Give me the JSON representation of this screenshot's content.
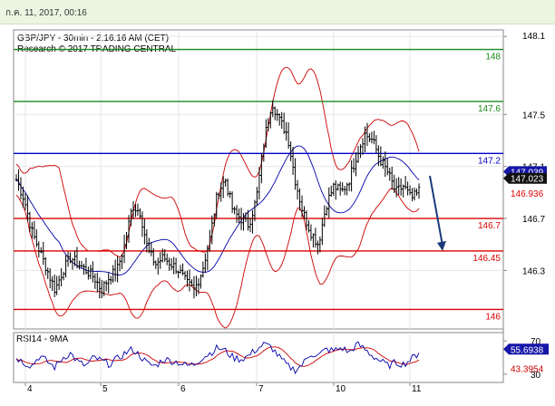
{
  "header": {
    "date_text": "ก.ค. 11, 2017, 00:16"
  },
  "chart_data": {
    "type": "candlestick",
    "title": "GBP/JPY - 30min - 2:16:16 AM (CET)",
    "subtitle": "Research © 2017 TRADING CENTRAL",
    "ylim": [
      145.85,
      148.15
    ],
    "y_ticks": [
      146.3,
      146.7,
      147.1,
      147.5,
      148.1
    ],
    "x_ticks": [
      "4",
      "5",
      "6",
      "7",
      "10",
      "11"
    ],
    "colors": {
      "resistance_green": "#1a8a1a",
      "pivot_blue": "#0000cc",
      "support_red": "#dd0000",
      "bollinger": "#cc0000",
      "moving_average": "#0000aa",
      "candles": "#000000",
      "forecast_arrow": "#1a3a7a"
    },
    "levels": [
      {
        "value": 148.0,
        "label": "148",
        "color": "green"
      },
      {
        "value": 147.6,
        "label": "147.6",
        "color": "green"
      },
      {
        "value": 147.2,
        "label": "147.2",
        "color": "blue"
      },
      {
        "value": 146.7,
        "label": "146.7",
        "color": "red"
      },
      {
        "value": 146.45,
        "label": "146.45",
        "color": "red"
      },
      {
        "value": 146.0,
        "label": "146",
        "color": "red"
      }
    ],
    "price_tags": [
      {
        "value": 147.039,
        "label": "147.039",
        "style": "blue"
      },
      {
        "value": 147.023,
        "label": "147.023",
        "style": "black"
      },
      {
        "value": 146.936,
        "label": "146.936",
        "style": "red-text"
      }
    ],
    "price_path": [
      147.0,
      146.85,
      146.6,
      146.45,
      146.3,
      146.15,
      146.3,
      146.4,
      146.35,
      146.3,
      146.25,
      146.15,
      146.25,
      146.3,
      146.5,
      146.8,
      146.75,
      146.45,
      146.35,
      146.4,
      146.35,
      146.3,
      146.2,
      146.15,
      146.3,
      146.55,
      146.9,
      147.0,
      146.75,
      146.7,
      146.65,
      146.85,
      147.3,
      147.6,
      147.45,
      147.35,
      147.0,
      146.75,
      146.6,
      146.5,
      146.8,
      146.95,
      146.9,
      147.0,
      147.2,
      147.35,
      147.3,
      147.15,
      147.05,
      146.9,
      146.95,
      146.85,
      146.9
    ],
    "forecast": {
      "from": 147.0,
      "to": 146.45
    },
    "rsi": {
      "title": "RSI14 - 9MA",
      "ylim": [
        20,
        80
      ],
      "ticks": [
        30,
        70
      ],
      "rsi_label": "55.6938",
      "ma_label": "43.3954",
      "rsi_color": "#0000aa",
      "ma_color": "#cc0000",
      "path": [
        50,
        44,
        40,
        52,
        45,
        38,
        50,
        55,
        44,
        40,
        50,
        46,
        42,
        48,
        55,
        60,
        52,
        42,
        40,
        48,
        46,
        44,
        40,
        42,
        50,
        55,
        62,
        58,
        50,
        48,
        52,
        60,
        66,
        62,
        50,
        40,
        35,
        42,
        55,
        52,
        60,
        58,
        62,
        56,
        66,
        60,
        52,
        46,
        40,
        44,
        42,
        48,
        55.69
      ]
    }
  }
}
